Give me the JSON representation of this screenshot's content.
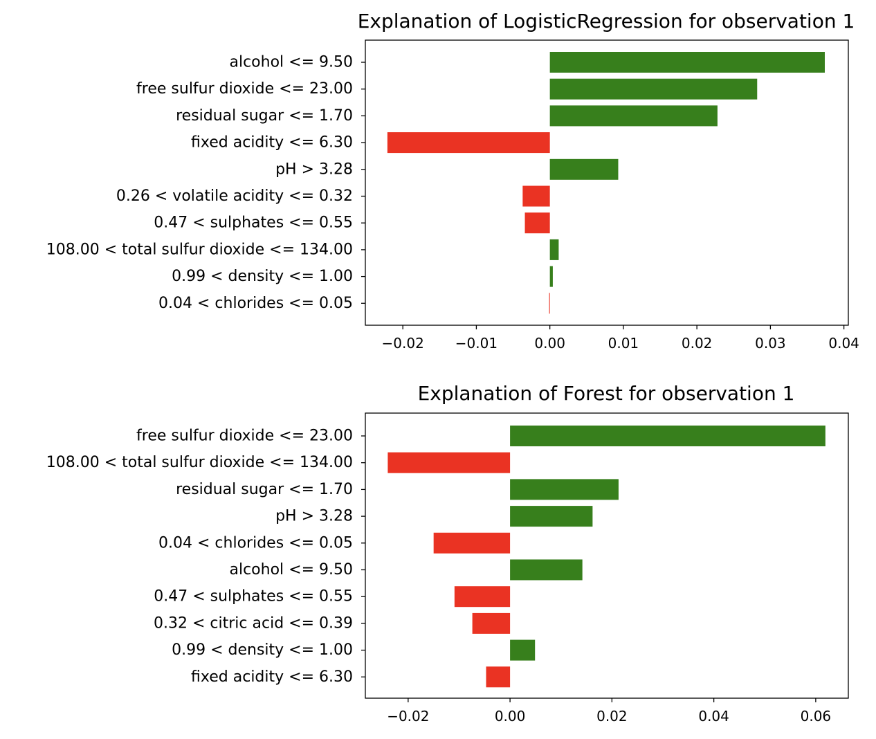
{
  "chart_data": [
    {
      "type": "bar",
      "orientation": "horizontal",
      "title": "Explanation of LogisticRegression for observation 1",
      "xlabel": "",
      "ylabel": "",
      "categories": [
        "alcohol <= 9.50",
        "free sulfur dioxide <= 23.00",
        "residual sugar <= 1.70",
        "fixed acidity <= 6.30",
        "pH > 3.28",
        "0.26 < volatile acidity <= 0.32",
        "0.47 < sulphates <= 0.55",
        "108.00 < total sulfur dioxide <= 134.00",
        "0.99 < density <= 1.00",
        "0.04 < chlorides <= 0.05"
      ],
      "values": [
        0.0374,
        0.0282,
        0.0228,
        -0.0221,
        0.0093,
        -0.0037,
        -0.0034,
        0.0012,
        0.0004,
        -0.0001
      ],
      "xlim": [
        -0.0251,
        0.0406
      ],
      "xticks": [
        -0.02,
        -0.01,
        0.0,
        0.01,
        0.02,
        0.03,
        0.04
      ],
      "xtick_labels": [
        "−0.02",
        "−0.01",
        "0.00",
        "0.01",
        "0.02",
        "0.03",
        "0.04"
      ],
      "grid": false,
      "colors": {
        "positive": "#377f1c",
        "negative": "#ea3323"
      }
    },
    {
      "type": "bar",
      "orientation": "horizontal",
      "title": "Explanation of Forest for observation 1",
      "xlabel": "",
      "ylabel": "",
      "categories": [
        "free sulfur dioxide <= 23.00",
        "108.00 < total sulfur dioxide <= 134.00",
        "residual sugar <= 1.70",
        "pH > 3.28",
        "0.04 < chlorides <= 0.05",
        "alcohol <= 9.50",
        "0.47 < sulphates <= 0.55",
        "0.32 < citric acid <= 0.39",
        "0.99 < density <= 1.00",
        "fixed acidity <= 6.30"
      ],
      "values": [
        0.0619,
        -0.024,
        0.0213,
        0.0162,
        -0.015,
        0.0142,
        -0.0109,
        -0.0074,
        0.0049,
        -0.0047
      ],
      "xlim": [
        -0.0284,
        0.0664
      ],
      "xticks": [
        -0.02,
        0.0,
        0.02,
        0.04,
        0.06
      ],
      "xtick_labels": [
        "−0.02",
        "0.00",
        "0.02",
        "0.04",
        "0.06"
      ],
      "grid": false,
      "colors": {
        "positive": "#377f1c",
        "negative": "#ea3323"
      }
    }
  ]
}
